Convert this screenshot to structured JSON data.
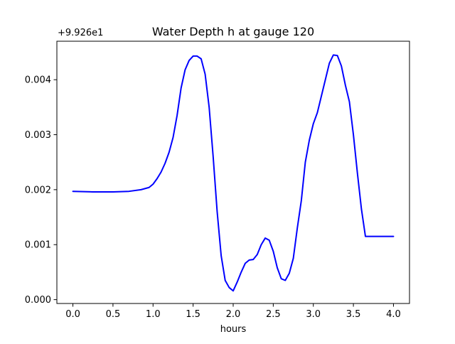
{
  "chart_data": {
    "type": "line",
    "title": "Water Depth h at gauge 120",
    "xlabel": "hours",
    "ylabel": "",
    "y_offset_label": "+9.926e1",
    "y_offset": 99.26,
    "xlim": [
      -0.2,
      4.2
    ],
    "ylim": [
      -7e-05,
      0.0047
    ],
    "x_ticks": [
      0.0,
      0.5,
      1.0,
      1.5,
      2.0,
      2.5,
      3.0,
      3.5,
      4.0
    ],
    "x_tick_labels": [
      "0.0",
      "0.5",
      "1.0",
      "1.5",
      "2.0",
      "2.5",
      "3.0",
      "3.5",
      "4.0"
    ],
    "y_ticks": [
      0.0,
      0.001,
      0.002,
      0.003,
      0.004
    ],
    "y_tick_labels": [
      "0.000",
      "0.001",
      "0.002",
      "0.003",
      "0.004"
    ],
    "grid": false,
    "legend": "none",
    "series": [
      {
        "color": "#0000ff",
        "x": [
          0.0,
          0.25,
          0.5,
          0.7,
          0.85,
          0.95,
          1.0,
          1.05,
          1.1,
          1.15,
          1.2,
          1.25,
          1.3,
          1.35,
          1.4,
          1.45,
          1.5,
          1.55,
          1.6,
          1.65,
          1.7,
          1.75,
          1.8,
          1.85,
          1.9,
          1.95,
          2.0,
          2.05,
          2.1,
          2.15,
          2.2,
          2.25,
          2.3,
          2.35,
          2.4,
          2.45,
          2.5,
          2.55,
          2.6,
          2.65,
          2.7,
          2.75,
          2.8,
          2.85,
          2.9,
          2.95,
          3.0,
          3.05,
          3.1,
          3.15,
          3.2,
          3.25,
          3.3,
          3.35,
          3.4,
          3.45,
          3.5,
          3.55,
          3.6,
          3.65,
          3.7,
          3.75,
          3.8,
          3.85,
          3.9,
          3.95,
          4.0
        ],
        "y": [
          0.00197,
          0.00196,
          0.00196,
          0.00197,
          0.002,
          0.00204,
          0.0021,
          0.0022,
          0.00232,
          0.00248,
          0.00268,
          0.00295,
          0.00335,
          0.00385,
          0.00418,
          0.00435,
          0.00443,
          0.00443,
          0.00438,
          0.0041,
          0.0035,
          0.0026,
          0.0016,
          0.0008,
          0.00035,
          0.00022,
          0.00016,
          0.00032,
          0.0005,
          0.00066,
          0.00072,
          0.00073,
          0.00082,
          0.001,
          0.00112,
          0.00108,
          0.00088,
          0.00058,
          0.00038,
          0.00035,
          0.00048,
          0.00075,
          0.0013,
          0.0018,
          0.0025,
          0.0029,
          0.0032,
          0.0034,
          0.0037,
          0.004,
          0.0043,
          0.00445,
          0.00444,
          0.00425,
          0.0039,
          0.0036,
          0.003,
          0.0023,
          0.00165,
          0.00115,
          0.00115,
          0.00115,
          0.00115,
          0.00115,
          0.00115,
          0.00115,
          0.00115
        ]
      }
    ]
  }
}
